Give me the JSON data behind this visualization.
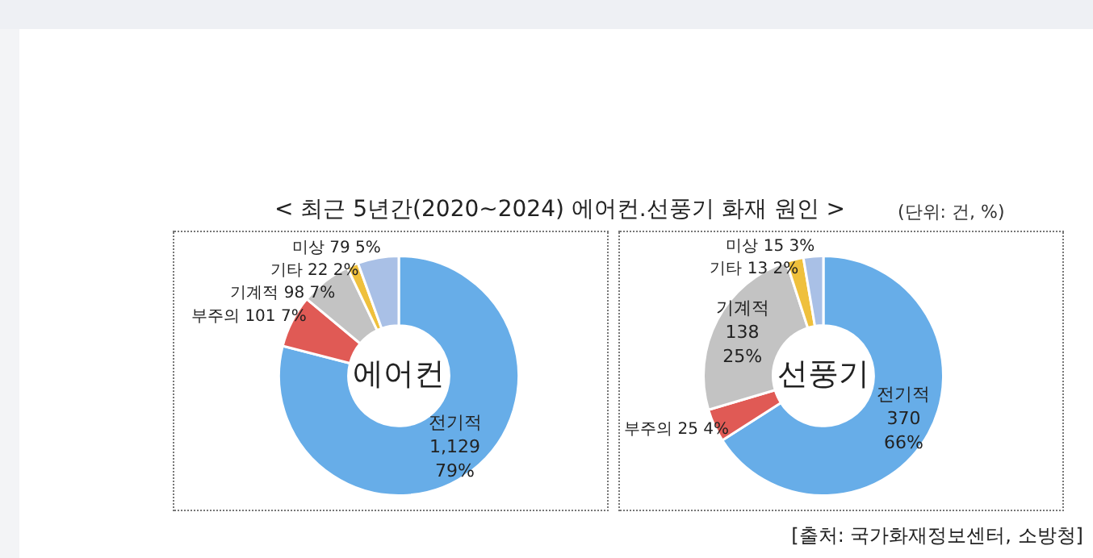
{
  "chart_data": [
    {
      "type": "donut",
      "title": "<  최근 5년간(2020~2024) 에어컨.선풍기 화재 원인  >",
      "annotations": [
        "에어컨"
      ],
      "categories": [
        "전기적",
        "부주의",
        "기계적",
        "기타",
        "미상"
      ],
      "values": [
        1129,
        101,
        98,
        22,
        79
      ],
      "value_labels": [
        "1,129 79%",
        "101 7%",
        "98 7%",
        "22 2%",
        "79 5%"
      ],
      "colors": [
        "#67ade8",
        "#e05a55",
        "#c3c3c3",
        "#efc03c",
        "#a9c0e6"
      ]
    },
    {
      "type": "donut",
      "subtitle": "(단위: 건, %)",
      "annotations": [
        "선풍기",
        "[출처: 국가화재정보센터, 소방청]"
      ],
      "categories": [
        "전기적",
        "부주의",
        "기계적",
        "기타",
        "미상"
      ],
      "values": [
        370,
        25,
        138,
        13,
        15
      ],
      "value_labels": [
        "370 66%",
        "25 4%",
        "138 25%",
        "13 2%",
        "15 3%"
      ],
      "colors": [
        "#67ade8",
        "#e05a55",
        "#c3c3c3",
        "#efc03c",
        "#a9c0e6"
      ]
    }
  ]
}
